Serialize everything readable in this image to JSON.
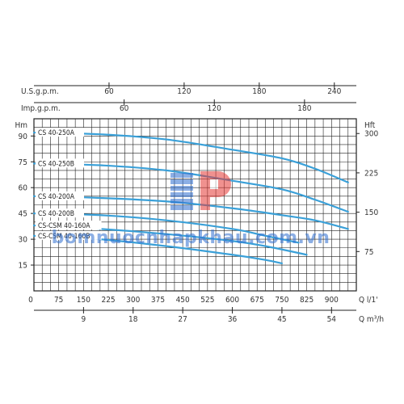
{
  "chart_data": {
    "type": "line",
    "top_axes": [
      {
        "label": "U.S.g.p.m.",
        "ticks": [
          60,
          120,
          180,
          240
        ],
        "q_per_unit": 3.7854
      },
      {
        "label": "Imp.g.p.m.",
        "ticks": [
          60,
          120,
          180
        ],
        "q_per_unit": 4.5461
      }
    ],
    "left_axis": {
      "label": "Hm",
      "ticks": [
        15,
        30,
        45,
        60,
        75,
        90
      ],
      "ylim": [
        0,
        100
      ]
    },
    "right_axis": {
      "label": "Hft",
      "ticks": [
        75,
        150,
        225,
        300
      ],
      "ft_per_m": 3.2808
    },
    "bottom_axes": [
      {
        "label": "Q l/1'",
        "ticks": [
          0,
          75,
          150,
          225,
          300,
          375,
          450,
          525,
          600,
          675,
          750,
          825,
          900
        ]
      },
      {
        "label": "Q m³/h",
        "ticks": [
          9,
          18,
          27,
          36,
          45,
          54
        ],
        "q_per_unit": 16.667
      }
    ],
    "xlim": [
      0,
      975
    ],
    "series": [
      {
        "name": "CS 40-250A",
        "x": [
          0,
          200,
          400,
          600,
          750,
          850,
          950
        ],
        "y": [
          92,
          91,
          88,
          82,
          77,
          71,
          63
        ]
      },
      {
        "name": "CS 40-250B",
        "x": [
          0,
          200,
          400,
          600,
          750,
          850,
          950
        ],
        "y": [
          74,
          73,
          70,
          64,
          59,
          53,
          46
        ]
      },
      {
        "name": "CS 40-200A",
        "x": [
          0,
          200,
          400,
          600,
          750,
          850,
          950
        ],
        "y": [
          55,
          54,
          52,
          48,
          44,
          41,
          36
        ]
      },
      {
        "name": "CS 40-200B",
        "x": [
          0,
          200,
          400,
          600,
          700,
          800
        ],
        "y": [
          45,
          44,
          41,
          36,
          32,
          28
        ]
      },
      {
        "name": "CS-CSM 40-160A",
        "x": [
          0,
          200,
          400,
          600,
          700,
          825
        ],
        "y": [
          38,
          36,
          33,
          29,
          26,
          21
        ]
      },
      {
        "name": "CS-CSM 40-160B",
        "x": [
          0,
          200,
          400,
          600,
          700,
          750
        ],
        "y": [
          32,
          30,
          26,
          21,
          18,
          16
        ]
      }
    ],
    "color": "#3aa0d8",
    "grid": true
  },
  "watermark": "bomnuocnhapkhau.com.vn"
}
